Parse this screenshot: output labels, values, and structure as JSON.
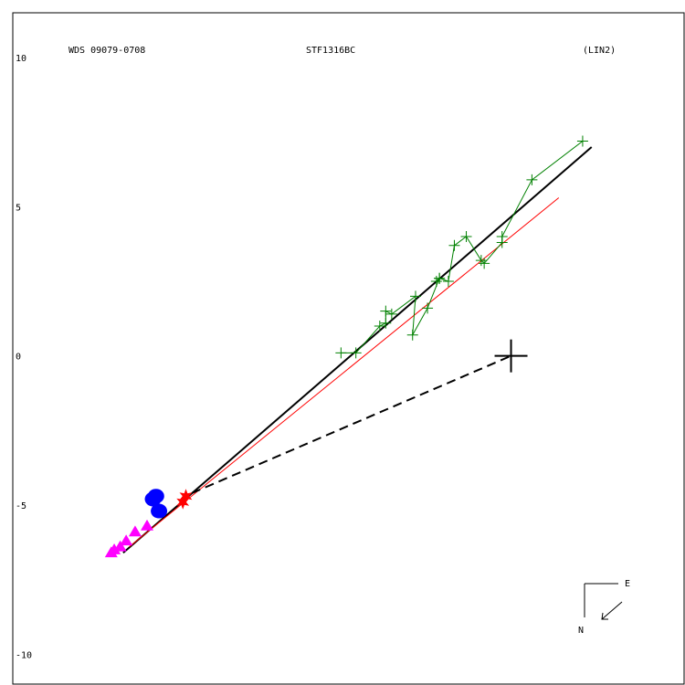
{
  "header": {
    "wds_id": "WDS 09079-0708",
    "pair_name": "STF1316BC",
    "orbit_type": "(LIN2)"
  },
  "compass": {
    "east_label": "E",
    "north_label": "N"
  },
  "chart_data": {
    "type": "scatter",
    "title": "",
    "xlabel": "",
    "ylabel": "",
    "xlim": [
      -16.7,
      5.8
    ],
    "ylim": [
      -11.0,
      11.5
    ],
    "yticks": [
      10,
      5,
      0,
      -5,
      -10
    ],
    "grid": false,
    "primary": {
      "x": 0,
      "y": 0,
      "marker": "large-cross"
    },
    "colors": {
      "frame": "#000000",
      "fit_line": "#000000",
      "alt_fit_line": "#ff0000",
      "micrometer": "#008000",
      "interferometric": "#0000ff",
      "photographic": "#ff00ff",
      "first_obs": "#ff0000"
    },
    "fit_line": {
      "x": [
        -13.0,
        2.7
      ],
      "y": [
        -6.6,
        7.0
      ]
    },
    "alt_fit_line": {
      "x": [
        -12.8,
        1.6
      ],
      "y": [
        -6.4,
        5.3
      ]
    },
    "connector": {
      "x": [
        -10.7,
        0
      ],
      "y": [
        -4.6,
        0
      ]
    },
    "micrometer_obs": {
      "x": [
        2.4,
        0.7,
        -0.3,
        -0.3,
        -0.9,
        -1.0,
        -1.5,
        -1.9,
        -2.1,
        -2.4,
        -2.5,
        -2.4,
        -2.8,
        -3.3,
        -3.2,
        -4.0,
        -4.2,
        -4.2,
        -4.4,
        -5.2,
        -5.7
      ],
      "y": [
        7.2,
        5.9,
        4.0,
        3.8,
        3.1,
        3.2,
        4.0,
        3.7,
        2.5,
        2.6,
        2.5,
        2.6,
        1.6,
        0.7,
        2.0,
        1.4,
        1.5,
        1.1,
        1.0,
        0.1,
        0.1
      ]
    },
    "interferometric_obs": {
      "x": [
        -12.0,
        -11.9,
        -11.8
      ],
      "y": [
        -4.8,
        -4.7,
        -5.2
      ]
    },
    "photographic_obs": {
      "x": [
        -12.2,
        -12.6,
        -12.9,
        -13.1,
        -13.3,
        -13.4
      ],
      "y": [
        -5.7,
        -5.9,
        -6.2,
        -6.4,
        -6.5,
        -6.6
      ]
    },
    "first_obs": {
      "x": [
        -11.0,
        -10.9
      ],
      "y": [
        -4.9,
        -4.7
      ]
    }
  }
}
